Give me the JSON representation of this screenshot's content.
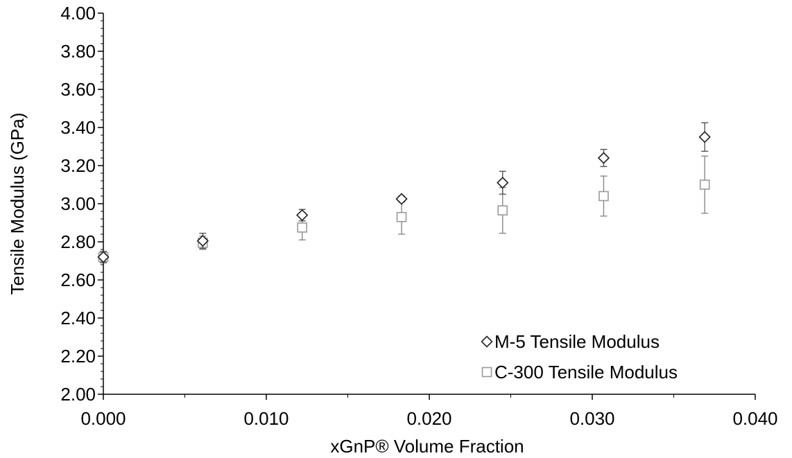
{
  "chart_data": {
    "type": "scatter",
    "title": "",
    "xlabel": "xGnP® Volume Fraction",
    "ylabel": "Tensile Modulus (GPa)",
    "xlim": [
      0.0,
      0.04
    ],
    "ylim": [
      2.0,
      4.0
    ],
    "x_ticks": [
      "0.000",
      "0.010",
      "0.020",
      "0.030",
      "0.040"
    ],
    "y_ticks": [
      "2.00",
      "2.20",
      "2.40",
      "2.60",
      "2.80",
      "3.00",
      "3.20",
      "3.40",
      "3.60",
      "3.80",
      "4.00"
    ],
    "grid": false,
    "legend_position": "bottom-right",
    "series": [
      {
        "name": "M-5 Tensile Modulus",
        "marker": "diamond",
        "color": "#222222",
        "x": [
          0.0,
          0.0061,
          0.0122,
          0.0183,
          0.0245,
          0.0307,
          0.0369
        ],
        "y": [
          2.72,
          2.805,
          2.94,
          3.025,
          3.11,
          3.24,
          3.35
        ],
        "error": [
          0.03,
          0.04,
          0.03,
          0.015,
          0.06,
          0.045,
          0.075
        ]
      },
      {
        "name": "C-300 Tensile Modulus",
        "marker": "square",
        "color": "#999999",
        "x": [
          0.0,
          0.0061,
          0.0122,
          0.0183,
          0.0245,
          0.0307,
          0.0369
        ],
        "y": [
          2.72,
          2.795,
          2.875,
          2.93,
          2.965,
          3.04,
          3.1
        ],
        "error": [
          0.03,
          0.035,
          0.065,
          0.09,
          0.12,
          0.105,
          0.15
        ]
      }
    ]
  }
}
